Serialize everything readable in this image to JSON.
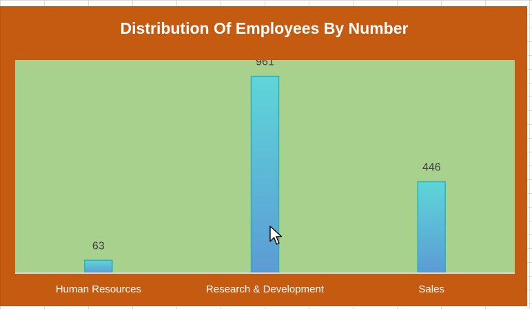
{
  "chart_data": {
    "type": "bar",
    "title": "Distribution Of Employees By Number",
    "categories": [
      "Human Resources",
      "Research & Development",
      "Sales"
    ],
    "values": [
      63,
      961,
      446
    ],
    "xlabel": "",
    "ylabel": "",
    "ylim": [
      0,
      1000
    ],
    "grid": false,
    "legend": "none",
    "colors": {
      "frame": "#c55a11",
      "plot_area": "#a9d18e",
      "bar_top": "#5ed6d8",
      "bar_bottom": "#5b9bd5",
      "bar_border": "#2bb0b8",
      "title_text": "#ffffff",
      "data_label": "#404040",
      "axis_label": "#ffffff"
    }
  },
  "cursor_icon": "arrow-cursor-icon"
}
